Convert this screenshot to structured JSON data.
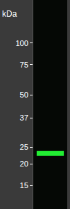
{
  "chart_data": {
    "type": "blot",
    "title": "kDa",
    "ylim": [
      11,
      177
    ],
    "log": "y",
    "yticks": [
      100,
      75,
      50,
      37,
      25,
      20,
      15
    ],
    "band": {
      "value": 23,
      "color": "#22ee33"
    }
  }
}
